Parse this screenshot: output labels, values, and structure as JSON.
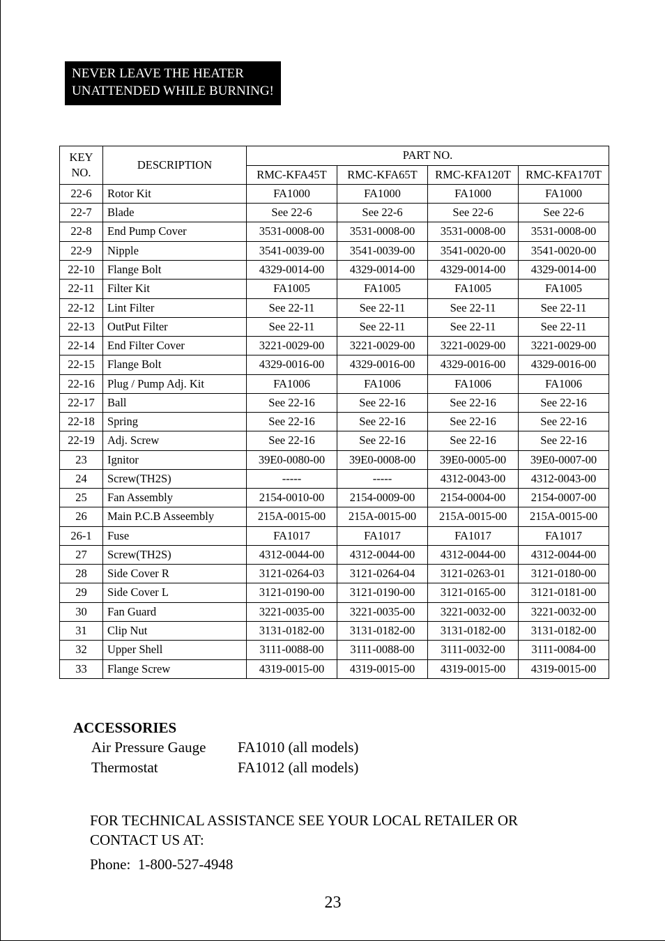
{
  "warning": {
    "line1": "NEVER LEAVE THE HEATER",
    "line2": "UNATTENDED WHILE BURNING!"
  },
  "table": {
    "header_keyno": "KEY NO.",
    "header_desc": "DESCRIPTION",
    "header_partno": "PART NO.",
    "models": [
      "RMC-KFA45T",
      "RMC-KFA65T",
      "RMC-KFA120T",
      "RMC-KFA170T"
    ],
    "rows": [
      {
        "key": "22-6",
        "desc": "Rotor Kit",
        "v": [
          "FA1000",
          "FA1000",
          "FA1000",
          "FA1000"
        ]
      },
      {
        "key": "22-7",
        "desc": "Blade",
        "v": [
          "See 22-6",
          "See 22-6",
          "See 22-6",
          "See 22-6"
        ]
      },
      {
        "key": "22-8",
        "desc": "End Pump Cover",
        "v": [
          "3531-0008-00",
          "3531-0008-00",
          "3531-0008-00",
          "3531-0008-00"
        ]
      },
      {
        "key": "22-9",
        "desc": "Nipple",
        "v": [
          "3541-0039-00",
          "3541-0039-00",
          "3541-0020-00",
          "3541-0020-00"
        ]
      },
      {
        "key": "22-10",
        "desc": "Flange Bolt",
        "v": [
          "4329-0014-00",
          "4329-0014-00",
          "4329-0014-00",
          "4329-0014-00"
        ]
      },
      {
        "key": "22-11",
        "desc": "Filter Kit",
        "v": [
          "FA1005",
          "FA1005",
          "FA1005",
          "FA1005"
        ]
      },
      {
        "key": "22-12",
        "desc": "Lint Filter",
        "v": [
          "See 22-11",
          "See 22-11",
          "See 22-11",
          "See 22-11"
        ]
      },
      {
        "key": "22-13",
        "desc": "OutPut Filter",
        "v": [
          "See 22-11",
          "See 22-11",
          "See 22-11",
          "See 22-11"
        ]
      },
      {
        "key": "22-14",
        "desc": "End Filter Cover",
        "v": [
          "3221-0029-00",
          "3221-0029-00",
          "3221-0029-00",
          "3221-0029-00"
        ]
      },
      {
        "key": "22-15",
        "desc": "Flange Bolt",
        "v": [
          "4329-0016-00",
          "4329-0016-00",
          "4329-0016-00",
          "4329-0016-00"
        ]
      },
      {
        "key": "22-16",
        "desc": "Plug / Pump Adj. Kit",
        "v": [
          "FA1006",
          "FA1006",
          "FA1006",
          "FA1006"
        ]
      },
      {
        "key": "22-17",
        "desc": "Ball",
        "v": [
          "See 22-16",
          "See 22-16",
          "See 22-16",
          "See 22-16"
        ]
      },
      {
        "key": "22-18",
        "desc": "Spring",
        "v": [
          "See 22-16",
          "See 22-16",
          "See 22-16",
          "See 22-16"
        ]
      },
      {
        "key": "22-19",
        "desc": "Adj. Screw",
        "v": [
          "See 22-16",
          "See 22-16",
          "See 22-16",
          "See 22-16"
        ]
      },
      {
        "key": "23",
        "desc": "Ignitor",
        "v": [
          "39E0-0080-00",
          "39E0-0008-00",
          "39E0-0005-00",
          "39E0-0007-00"
        ]
      },
      {
        "key": "24",
        "desc": "Screw(TH2S)",
        "v": [
          "-----",
          "-----",
          "4312-0043-00",
          "4312-0043-00"
        ]
      },
      {
        "key": "25",
        "desc": "Fan Assembly",
        "v": [
          "2154-0010-00",
          "2154-0009-00",
          "2154-0004-00",
          "2154-0007-00"
        ]
      },
      {
        "key": "26",
        "desc": "Main P.C.B Asseembly",
        "v": [
          "215A-0015-00",
          "215A-0015-00",
          "215A-0015-00",
          "215A-0015-00"
        ]
      },
      {
        "key": "26-1",
        "desc": "Fuse",
        "v": [
          "FA1017",
          "FA1017",
          "FA1017",
          "FA1017"
        ]
      },
      {
        "key": "27",
        "desc": "Screw(TH2S)",
        "v": [
          "4312-0044-00",
          "4312-0044-00",
          "4312-0044-00",
          "4312-0044-00"
        ]
      },
      {
        "key": "28",
        "desc": "Side Cover R",
        "v": [
          "3121-0264-03",
          "3121-0264-04",
          "3121-0263-01",
          "3121-0180-00"
        ]
      },
      {
        "key": "29",
        "desc": "Side Cover L",
        "v": [
          "3121-0190-00",
          "3121-0190-00",
          "3121-0165-00",
          "3121-0181-00"
        ]
      },
      {
        "key": "30",
        "desc": "Fan Guard",
        "v": [
          "3221-0035-00",
          "3221-0035-00",
          "3221-0032-00",
          "3221-0032-00"
        ]
      },
      {
        "key": "31",
        "desc": "Clip Nut",
        "v": [
          "3131-0182-00",
          "3131-0182-00",
          "3131-0182-00",
          "3131-0182-00"
        ]
      },
      {
        "key": "32",
        "desc": "Upper Shell",
        "v": [
          "3111-0088-00",
          "3111-0088-00",
          "3111-0032-00",
          "3111-0084-00"
        ]
      },
      {
        "key": "33",
        "desc": "Flange Screw",
        "v": [
          "4319-0015-00",
          "4319-0015-00",
          "4319-0015-00",
          "4319-0015-00"
        ]
      }
    ],
    "colors": {
      "border": "#000000",
      "background": "#ffffff",
      "text": "#000000"
    },
    "font_size_pt": 12
  },
  "accessories": {
    "title": "ACCESSORIES",
    "items": [
      {
        "label": "Air Pressure Gauge",
        "value": "FA1010 (all models)"
      },
      {
        "label": "Thermostat",
        "value": "FA1012 (all models)"
      }
    ]
  },
  "tech": {
    "line1": "FOR TECHNICAL ASSISTANCE SEE YOUR LOCAL RETAILER OR",
    "line2": "CONTACT US AT:",
    "phone_label": "Phone:",
    "phone_number": "1-800-527-4948"
  },
  "page_number": "23"
}
